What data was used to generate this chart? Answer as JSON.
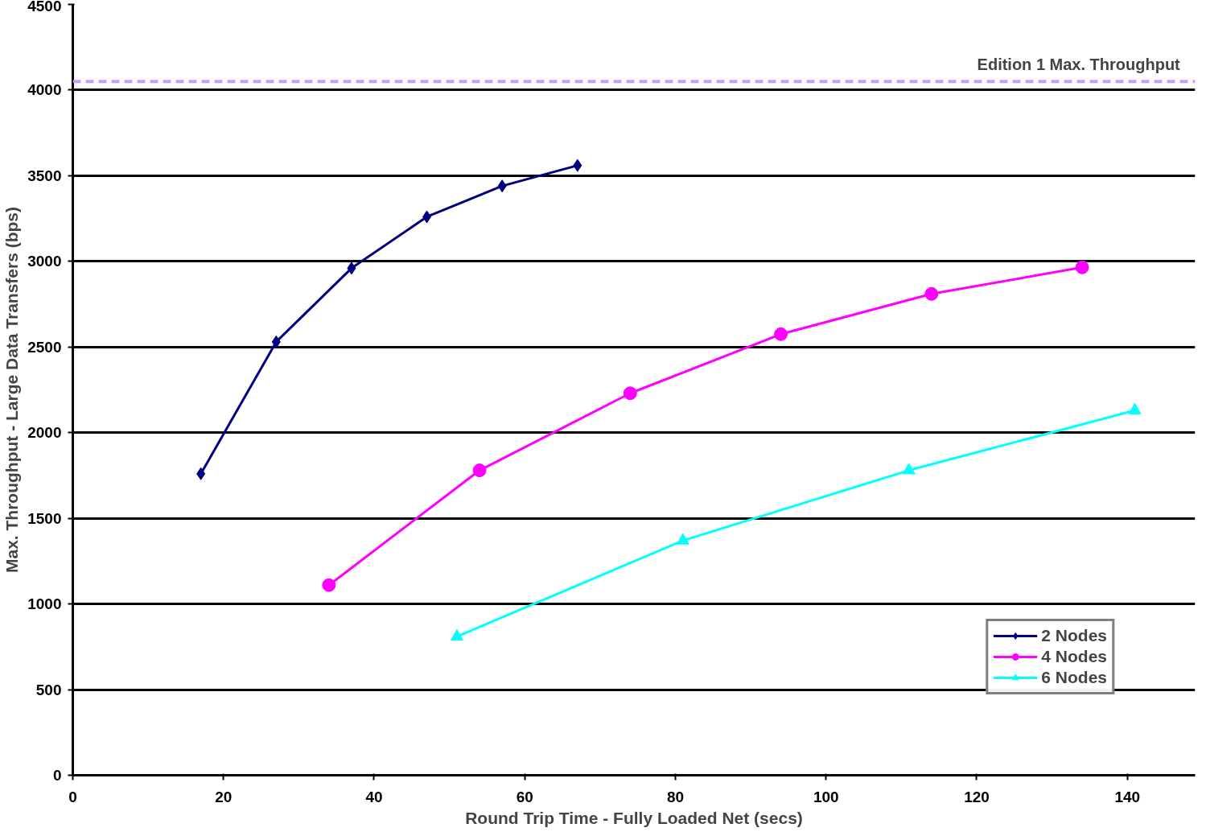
{
  "chart_data": {
    "type": "line",
    "xlabel": "Round Trip Time - Fully Loaded Net (secs)",
    "ylabel": "Max. Throughput - Large Data Transfers (bps)",
    "xlim": [
      0,
      149
    ],
    "xticks": [
      0,
      20,
      40,
      60,
      80,
      100,
      120,
      140
    ],
    "ylim": [
      0,
      4500
    ],
    "yticks": [
      0,
      500,
      1000,
      1500,
      2000,
      2500,
      3000,
      3500,
      4000,
      4500
    ],
    "grid": "y",
    "legend": "bottom right",
    "line_style": "solid",
    "ref_lines": [
      {
        "axis": "y",
        "value": 4050,
        "label": "Edition 1 Max. Throughput",
        "color": "#cc99ff",
        "line_style": "dashed"
      }
    ],
    "series": [
      {
        "name": "2 Nodes",
        "color": "#000080",
        "marker": "diamond",
        "x": [
          17,
          27,
          37,
          47,
          57,
          67
        ],
        "values": [
          1760,
          2530,
          2960,
          3260,
          3440,
          3560
        ]
      },
      {
        "name": "4 Nodes",
        "color": "#ff00ff",
        "marker": "circle",
        "x": [
          34,
          54,
          74,
          94,
          114,
          134
        ],
        "values": [
          1110,
          1780,
          2230,
          2575,
          2810,
          2965
        ]
      },
      {
        "name": "6 Nodes",
        "color": "#00ffff",
        "marker": "triangle",
        "x": [
          51,
          81,
          111,
          141
        ],
        "values": [
          810,
          1370,
          1780,
          2130
        ]
      }
    ]
  }
}
